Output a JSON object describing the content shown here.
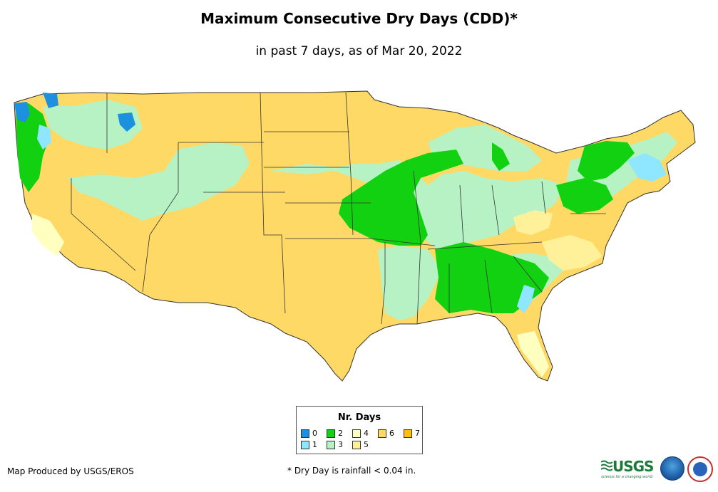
{
  "title": "Maximum Consecutive Dry Days (CDD)*",
  "subtitle": "in past 7 days, as of Mar 20, 2022",
  "legend": {
    "title": "Nr. Days",
    "items": [
      {
        "label": "0",
        "color": "#1e90e0"
      },
      {
        "label": "1",
        "color": "#8ee6ff"
      },
      {
        "label": "2",
        "color": "#11d111"
      },
      {
        "label": "3",
        "color": "#b7f2c4"
      },
      {
        "label": "4",
        "color": "#ffffc0"
      },
      {
        "label": "5",
        "color": "#fff19a"
      },
      {
        "label": "6",
        "color": "#ffd966"
      },
      {
        "label": "7",
        "color": "#ffc000"
      }
    ]
  },
  "credit": "Map Produced by USGS/EROS",
  "footnote": "* Dry Day is rainfall < 0.04 in.",
  "logos": {
    "usgs": "USGS",
    "usgs_tagline": "science for a changing world",
    "noaa": "noaa-logo-icon",
    "nws": "nws-logo-icon"
  }
}
